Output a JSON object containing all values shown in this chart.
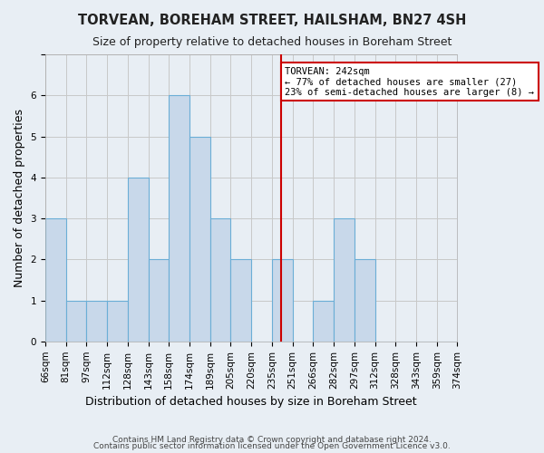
{
  "title": "TORVEAN, BOREHAM STREET, HAILSHAM, BN27 4SH",
  "subtitle": "Size of property relative to detached houses in Boreham Street",
  "xlabel": "Distribution of detached houses by size in Boreham Street",
  "ylabel": "Number of detached properties",
  "bar_labels": [
    "66sqm",
    "81sqm",
    "97sqm",
    "112sqm",
    "128sqm",
    "143sqm",
    "158sqm",
    "174sqm",
    "189sqm",
    "205sqm",
    "220sqm",
    "235sqm",
    "251sqm",
    "266sqm",
    "282sqm",
    "297sqm",
    "312sqm",
    "328sqm",
    "343sqm",
    "359sqm",
    "374sqm"
  ],
  "bar_heights": [
    3,
    1,
    1,
    1,
    4,
    2,
    6,
    5,
    3,
    2,
    0,
    2,
    0,
    1,
    3,
    2,
    0,
    0,
    0,
    0
  ],
  "bar_color": "#c8d8ea",
  "bar_edgecolor": "#6baed6",
  "bar_linewidth": 0.8,
  "grid_color": "#c8c8c8",
  "background_color": "#e8eef4",
  "annotation_text": "TORVEAN: 242sqm\n← 77% of detached houses are smaller (27)\n23% of semi-detached houses are larger (8) →",
  "annotation_box_facecolor": "#ffffff",
  "annotation_box_edgecolor": "#cc0000",
  "ylim": [
    0,
    7
  ],
  "yticks": [
    0,
    1,
    2,
    3,
    4,
    5,
    6,
    7
  ],
  "footnote1": "Contains HM Land Registry data © Crown copyright and database right 2024.",
  "footnote2": "Contains public sector information licensed under the Open Government Licence v3.0.",
  "title_fontsize": 10.5,
  "subtitle_fontsize": 9,
  "ylabel_fontsize": 9,
  "xlabel_fontsize": 9,
  "tick_fontsize": 7.5,
  "footnote_fontsize": 6.5
}
